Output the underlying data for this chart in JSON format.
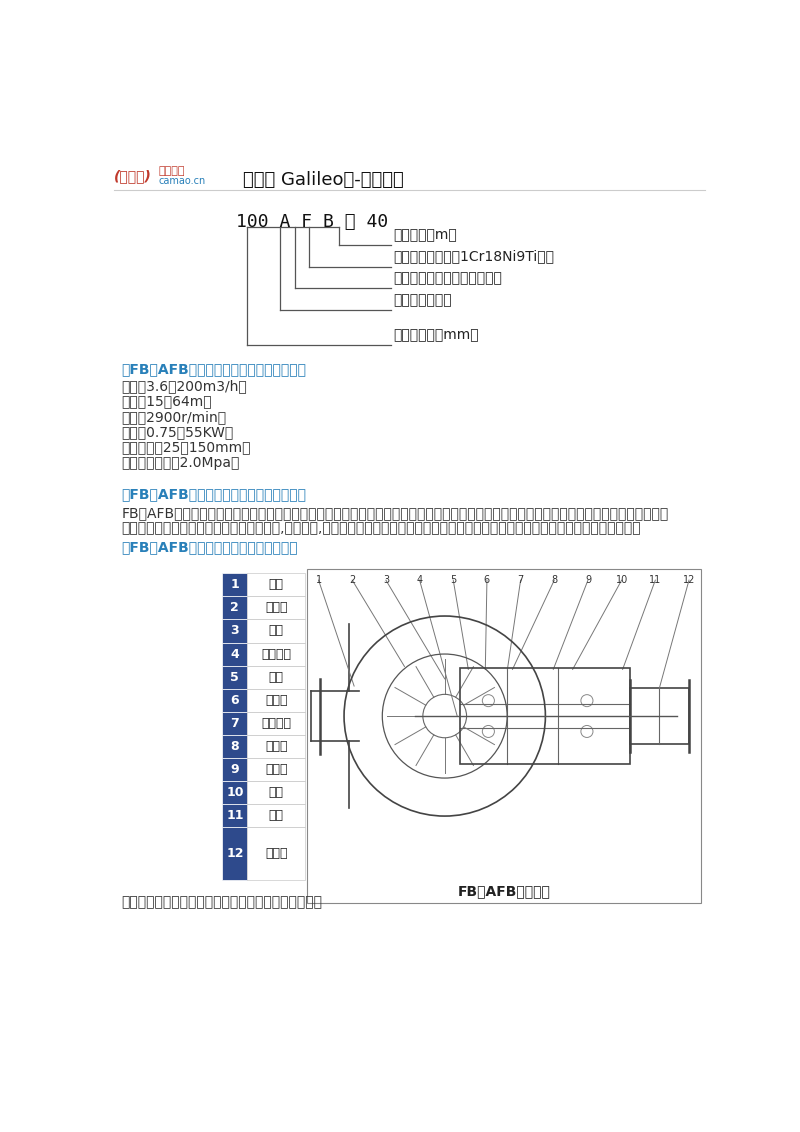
{
  "bg_color": "#ffffff",
  "header_logo_text1": "(伽利略)",
  "header_logo_text2": "畅销品牌",
  "header_logo_text3": "camao.cn",
  "header_title": "伽利略 Galileo泵-欧洲品质",
  "model_text": "100 A F B － 40",
  "label1": "设计扬程（m）",
  "label2": "过流部分为不锈鑢1Cr18Ni9Ti制造",
  "label3": "单级单吸悬臂式耐腐蚀离心泵",
  "label4": "付叶轮单面密封",
  "label5": "吸入口直径（mm）",
  "section1_title": "【FB、AFB型不锈钙耐腐蚀泵】技术参数：",
  "tech_params": [
    "流量：3.6～200m3/h；",
    "扬程：15～64m；",
    "转速：2900r/min；",
    "功率：0.75～55KW；",
    "进口直径：25～150mm；",
    "最高工作压力：2.0Mpa。"
  ],
  "section2_title": "【FB、AFB型不锈钙耐腐蚀泵】产品用途：",
  "usage_line1": "FB、AFB型不锈钙耐腐蚀泵广泛应用于化工、石油、冶金、轻工、合成纤维、环保、食品、医药等部门。该类产品采用双端面机械密封，为提高",
  "usage_line2": "产品质量、减少跑、冒、滴、漏，防止污染,改善环境,发挥很大的作用。具有性能稳定可靠、密封性能好，造型美观，使用检修方便等优点。",
  "section3_title": "【FB、AFB型不锈鑉耐腐蚀泵】结构图：",
  "struct_parts": [
    {
      "num": "1",
      "name": "泵壳"
    },
    {
      "num": "2",
      "name": "密封环"
    },
    {
      "num": "3",
      "name": "叶轮"
    },
    {
      "num": "4",
      "name": "叶轮耗母"
    },
    {
      "num": "5",
      "name": "泵盖"
    },
    {
      "num": "6",
      "name": "密封盖"
    },
    {
      "num": "7",
      "name": "机械密封"
    },
    {
      "num": "8",
      "name": "轴承盖"
    },
    {
      "num": "9",
      "name": "轴承体"
    },
    {
      "num": "10",
      "name": "泵轴"
    },
    {
      "num": "11",
      "name": "轴承"
    },
    {
      "num": "12",
      "name": "联轴节"
    }
  ],
  "struct_caption": "FB、AFB型结构图",
  "footer_text": "泵的旋转方向：自吸入口向电机端看为顺针方向旋转。",
  "accent_color": "#1a5276",
  "red_color": "#c0392b",
  "blue_color": "#2980b9",
  "table_blue": "#2e4a8c",
  "line_color": "#555555",
  "text_color": "#222222",
  "param_color": "#333333"
}
